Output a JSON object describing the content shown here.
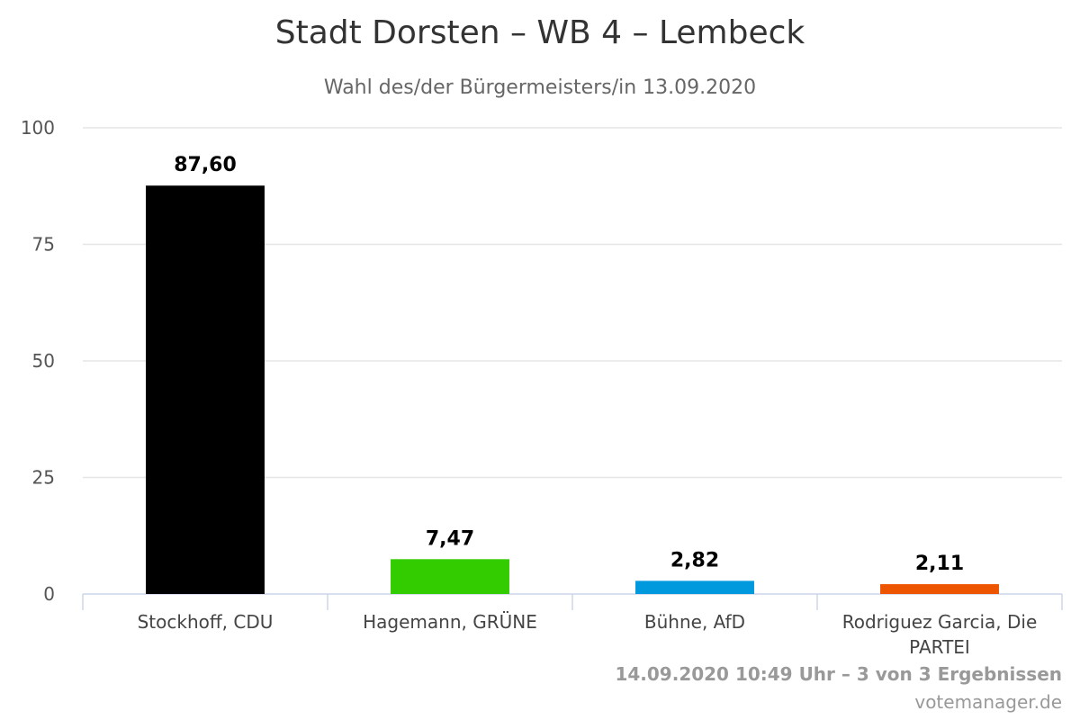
{
  "chart_data": {
    "type": "bar",
    "title": "Stadt Dorsten – WB 4 – Lembeck",
    "subtitle": "Wahl des/der Bürgermeisters/in 13.09.2020",
    "categories": [
      "Stockhoff, CDU",
      "Hagemann, GRÜNE",
      "Bühne, AfD",
      "Rodriguez Garcia, Die PARTEI"
    ],
    "category_lines": [
      [
        "Stockhoff, CDU"
      ],
      [
        "Hagemann, GRÜNE"
      ],
      [
        "Bühne, AfD"
      ],
      [
        "Rodriguez Garcia, Die",
        "PARTEI"
      ]
    ],
    "values": [
      87.6,
      7.47,
      2.82,
      2.11
    ],
    "value_labels": [
      "87,60",
      "7,47",
      "2,82",
      "2,11"
    ],
    "colors": [
      "#000000",
      "#33cc00",
      "#0099dd",
      "#ee5500"
    ],
    "ylim": [
      0,
      100
    ],
    "yticks": [
      0,
      25,
      50,
      75,
      100
    ],
    "xlabel": "",
    "ylabel": "",
    "grid": true,
    "legend": "none"
  },
  "footer": {
    "credits": "14.09.2020 10:49 Uhr – 3 von 3 Ergebnissen",
    "source": "votemanager.de"
  }
}
